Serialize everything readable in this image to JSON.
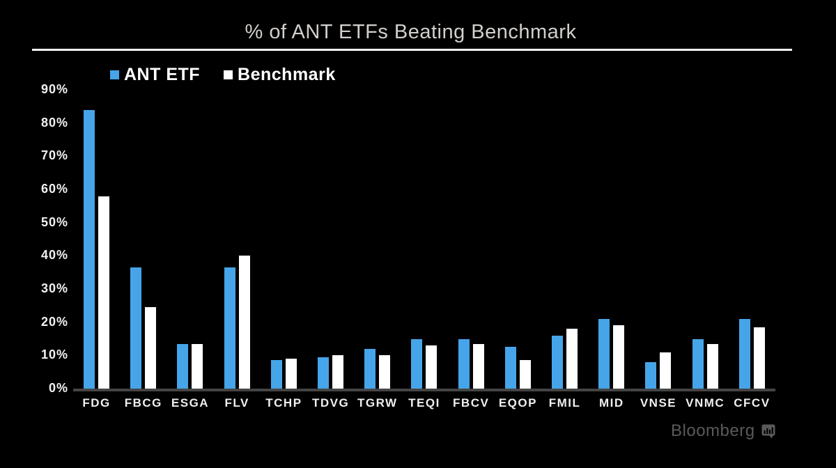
{
  "title": "% of ANT ETFs Beating Benchmark",
  "chart_data": {
    "type": "bar",
    "title": "% of ANT ETFs Beating Benchmark",
    "categories": [
      "FDG",
      "FBCG",
      "ESGA",
      "FLV",
      "TCHP",
      "TDVG",
      "TGRW",
      "TEQI",
      "FBCV",
      "EQOP",
      "FMIL",
      "MID",
      "VNSE",
      "VNMC",
      "CFCV"
    ],
    "series": [
      {
        "name": "ANT ETF",
        "color": "#46a5e8",
        "values": [
          84,
          36.5,
          13.5,
          36.5,
          8.5,
          9.5,
          12,
          15,
          15,
          12.5,
          16,
          21,
          8,
          15,
          21
        ]
      },
      {
        "name": "Benchmark",
        "color": "#ffffff",
        "values": [
          58,
          24.5,
          13.5,
          40,
          9,
          10,
          10,
          13,
          13.5,
          8.5,
          18,
          19,
          11,
          13.5,
          18.5
        ]
      }
    ],
    "xlabel": "",
    "ylabel": "",
    "ylim": [
      0,
      90
    ],
    "y_ticks": [
      "90%",
      "80%",
      "70%",
      "60%",
      "50%",
      "40%",
      "30%",
      "20%",
      "10%",
      "0%"
    ],
    "grid": false,
    "legend_position": "top-left",
    "background": "#000000"
  },
  "branding": {
    "label": "Bloomberg",
    "icon": "bloomberg-terminal-icon",
    "color": "#5a5a5a"
  }
}
